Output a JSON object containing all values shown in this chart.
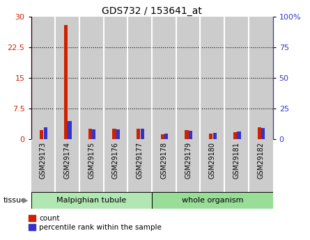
{
  "title": "GDS732 / 153641_at",
  "samples": [
    "GSM29173",
    "GSM29174",
    "GSM29175",
    "GSM29176",
    "GSM29177",
    "GSM29178",
    "GSM29179",
    "GSM29180",
    "GSM29181",
    "GSM29182"
  ],
  "count_values": [
    2.2,
    28.0,
    2.5,
    2.5,
    2.5,
    1.2,
    2.2,
    1.3,
    1.8,
    3.0
  ],
  "percentile_values": [
    10.0,
    15.0,
    8.0,
    8.0,
    8.5,
    4.5,
    7.0,
    5.0,
    6.5,
    9.0
  ],
  "left_ylim": [
    0,
    30
  ],
  "left_yticks": [
    0,
    7.5,
    15,
    22.5,
    30
  ],
  "right_ylim": [
    0,
    100
  ],
  "right_yticks": [
    0,
    25,
    50,
    75,
    100
  ],
  "count_color": "#cc2200",
  "percentile_color": "#3333cc",
  "tissue_groups": [
    {
      "label": "Malpighian tubule",
      "start": 0,
      "end": 5,
      "color": "#b2e6b2"
    },
    {
      "label": "whole organism",
      "start": 5,
      "end": 10,
      "color": "#99dd99"
    }
  ],
  "bar_bg_color": "#cccccc",
  "tissue_label": "tissue",
  "legend_count": "count",
  "legend_percentile": "percentile rank within the sample",
  "right_ytick_labels": [
    "0",
    "25",
    "50",
    "75",
    "100%"
  ]
}
